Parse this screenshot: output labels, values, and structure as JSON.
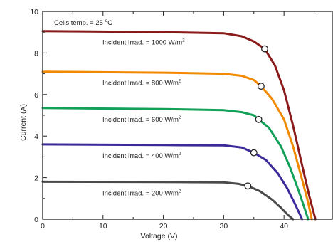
{
  "chart_data": {
    "type": "line",
    "xlabel": "Voltage (V)",
    "ylabel": "Current (A)",
    "xlim": [
      0,
      48
    ],
    "ylim": [
      0,
      10
    ],
    "x_ticks": [
      0,
      10,
      20,
      30,
      40
    ],
    "y_ticks": [
      0,
      2,
      4,
      6,
      8,
      10
    ],
    "grid": false,
    "legend": "none",
    "annotation": {
      "pre": "Cells temp. = 25 ",
      "deg": "o",
      "post": "C"
    },
    "series": [
      {
        "name": "Incident Irrad. = 1000 W/m",
        "sup": "2",
        "color": "#8b1a1a",
        "isc": 9.05,
        "voc": 45.2,
        "mpp": [
          36.8,
          8.2
        ],
        "points": [
          [
            0,
            9.05
          ],
          [
            20,
            9.0
          ],
          [
            30,
            8.95
          ],
          [
            33,
            8.8
          ],
          [
            35,
            8.55
          ],
          [
            36.8,
            8.2
          ],
          [
            38.5,
            7.4
          ],
          [
            40,
            6.2
          ],
          [
            41.5,
            4.5
          ],
          [
            43,
            2.6
          ],
          [
            44.2,
            1.1
          ],
          [
            45.2,
            0
          ]
        ]
      },
      {
        "name": "Incident Irrad. = 800 W/m",
        "sup": "2",
        "color": "#f18a00",
        "isc": 7.1,
        "voc": 44.6,
        "mpp": [
          36.2,
          6.4
        ],
        "points": [
          [
            0,
            7.1
          ],
          [
            20,
            7.05
          ],
          [
            30,
            7.0
          ],
          [
            33,
            6.9
          ],
          [
            35,
            6.7
          ],
          [
            36.2,
            6.4
          ],
          [
            38,
            5.8
          ],
          [
            40,
            4.8
          ],
          [
            41.5,
            3.5
          ],
          [
            43,
            1.9
          ],
          [
            44,
            0.8
          ],
          [
            44.6,
            0
          ]
        ]
      },
      {
        "name": "Incident Irrad. = 600 W/m",
        "sup": "2",
        "color": "#13a058",
        "isc": 5.35,
        "voc": 44.0,
        "mpp": [
          35.8,
          4.8
        ],
        "points": [
          [
            0,
            5.35
          ],
          [
            20,
            5.3
          ],
          [
            30,
            5.25
          ],
          [
            33,
            5.15
          ],
          [
            35,
            5.0
          ],
          [
            35.8,
            4.8
          ],
          [
            37.5,
            4.4
          ],
          [
            39.5,
            3.5
          ],
          [
            41,
            2.5
          ],
          [
            42.5,
            1.3
          ],
          [
            43.5,
            0.45
          ],
          [
            44.0,
            0
          ]
        ]
      },
      {
        "name": "Incident Irrad. = 400 W/m",
        "sup": "2",
        "color": "#3a2a9a",
        "isc": 3.6,
        "voc": 43.0,
        "mpp": [
          35.0,
          3.2
        ],
        "points": [
          [
            0,
            3.6
          ],
          [
            20,
            3.57
          ],
          [
            30,
            3.55
          ],
          [
            33,
            3.45
          ],
          [
            35,
            3.2
          ],
          [
            37,
            2.85
          ],
          [
            39,
            2.2
          ],
          [
            40.5,
            1.5
          ],
          [
            41.8,
            0.75
          ],
          [
            43.0,
            0
          ]
        ]
      },
      {
        "name": "Incident Irrad. = 200 W/m",
        "sup": "2",
        "color": "#4a4a4a",
        "isc": 1.8,
        "voc": 41.5,
        "mpp": [
          34.0,
          1.6
        ],
        "points": [
          [
            0,
            1.8
          ],
          [
            20,
            1.79
          ],
          [
            30,
            1.77
          ],
          [
            32.5,
            1.7
          ],
          [
            34.0,
            1.6
          ],
          [
            36,
            1.35
          ],
          [
            38,
            0.95
          ],
          [
            39.5,
            0.55
          ],
          [
            40.6,
            0.22
          ],
          [
            41.5,
            0
          ]
        ]
      }
    ]
  }
}
